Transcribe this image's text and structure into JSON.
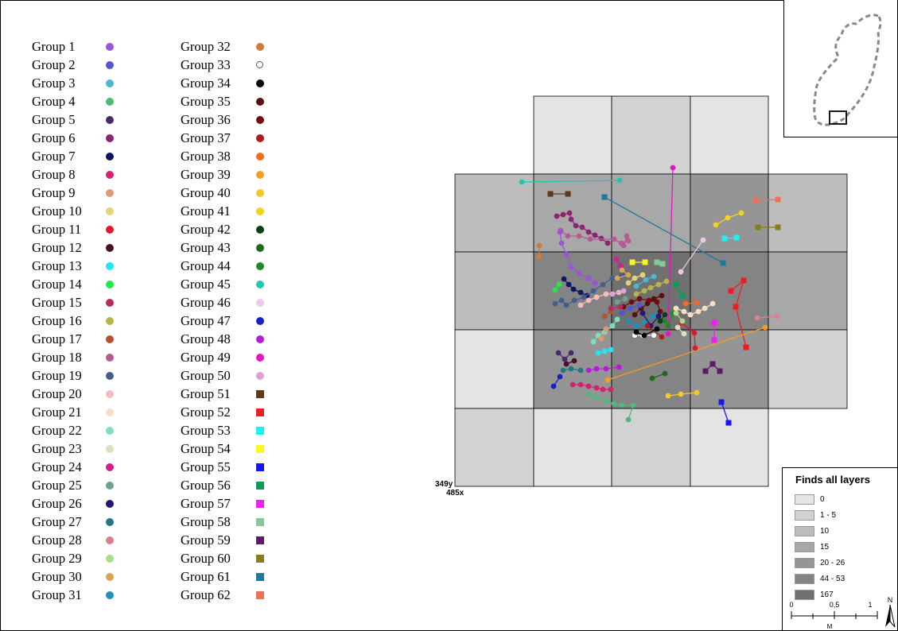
{
  "legend": {
    "groups": [
      {
        "label": "Group 1",
        "color": "#9a55d6",
        "shape": "circle"
      },
      {
        "label": "Group 2",
        "color": "#4f55d6",
        "shape": "circle"
      },
      {
        "label": "Group 3",
        "color": "#49b8d0",
        "shape": "circle"
      },
      {
        "label": "Group 4",
        "color": "#50b878",
        "shape": "circle"
      },
      {
        "label": "Group 5",
        "color": "#4a2a6f",
        "shape": "circle"
      },
      {
        "label": "Group 6",
        "color": "#8e2470",
        "shape": "circle"
      },
      {
        "label": "Group 7",
        "color": "#111560",
        "shape": "circle"
      },
      {
        "label": "Group 8",
        "color": "#d8206e",
        "shape": "circle"
      },
      {
        "label": "Group 9",
        "color": "#e09a78",
        "shape": "circle"
      },
      {
        "label": "Group 10",
        "color": "#e5d27a",
        "shape": "circle"
      },
      {
        "label": "Group 11",
        "color": "#dd1a30",
        "shape": "circle"
      },
      {
        "label": "Group 12",
        "color": "#4e0f26",
        "shape": "circle"
      },
      {
        "label": "Group 13",
        "color": "#23e6f0",
        "shape": "circle"
      },
      {
        "label": "Group 14",
        "color": "#22e84a",
        "shape": "circle"
      },
      {
        "label": "Group 15",
        "color": "#b82c5a",
        "shape": "circle"
      },
      {
        "label": "Group 16",
        "color": "#b6b54c",
        "shape": "circle"
      },
      {
        "label": "Group 17",
        "color": "#b55234",
        "shape": "circle"
      },
      {
        "label": "Group 18",
        "color": "#b55a94",
        "shape": "circle"
      },
      {
        "label": "Group 19",
        "color": "#465e8e",
        "shape": "circle"
      },
      {
        "label": "Group 20",
        "color": "#f4bcbe",
        "shape": "circle"
      },
      {
        "label": "Group 21",
        "color": "#f7dfc6",
        "shape": "circle"
      },
      {
        "label": "Group 22",
        "color": "#7fdec0",
        "shape": "circle"
      },
      {
        "label": "Group 23",
        "color": "#dfdcc0",
        "shape": "circle"
      },
      {
        "label": "Group 24",
        "color": "#d0208e",
        "shape": "circle"
      },
      {
        "label": "Group 25",
        "color": "#6fa090",
        "shape": "circle"
      },
      {
        "label": "Group 26",
        "color": "#23157a",
        "shape": "circle"
      },
      {
        "label": "Group 27",
        "color": "#237882",
        "shape": "circle"
      },
      {
        "label": "Group 28",
        "color": "#d9808e",
        "shape": "circle"
      },
      {
        "label": "Group 29",
        "color": "#a8e08a",
        "shape": "circle"
      },
      {
        "label": "Group 30",
        "color": "#dba452",
        "shape": "circle"
      },
      {
        "label": "Group 31",
        "color": "#1f90bb",
        "shape": "circle"
      },
      {
        "label": "Group 32",
        "color": "#d17a38",
        "shape": "circle"
      },
      {
        "label": "Group 33",
        "color": "#ffffff",
        "shape": "hollow"
      },
      {
        "label": "Group 34",
        "color": "#000000",
        "shape": "circle"
      },
      {
        "label": "Group 35",
        "color": "#5c0d12",
        "shape": "circle"
      },
      {
        "label": "Group 36",
        "color": "#730c0c",
        "shape": "circle"
      },
      {
        "label": "Group 37",
        "color": "#b01a1a",
        "shape": "circle"
      },
      {
        "label": "Group 38",
        "color": "#ee6d20",
        "shape": "circle"
      },
      {
        "label": "Group 39",
        "color": "#f29e22",
        "shape": "circle"
      },
      {
        "label": "Group 40",
        "color": "#f6c82a",
        "shape": "circle"
      },
      {
        "label": "Group 41",
        "color": "#f5d21c",
        "shape": "circle"
      },
      {
        "label": "Group 42",
        "color": "#0d3f12",
        "shape": "circle"
      },
      {
        "label": "Group 43",
        "color": "#1f6a1f",
        "shape": "circle"
      },
      {
        "label": "Group 44",
        "color": "#1f8a24",
        "shape": "circle"
      },
      {
        "label": "Group 45",
        "color": "#22c4b4",
        "shape": "circle"
      },
      {
        "label": "Group 46",
        "color": "#ecc8ea",
        "shape": "circle"
      },
      {
        "label": "Group 47",
        "color": "#1620c8",
        "shape": "circle"
      },
      {
        "label": "Group 48",
        "color": "#b61cd8",
        "shape": "circle"
      },
      {
        "label": "Group 49",
        "color": "#e118c0",
        "shape": "circle"
      },
      {
        "label": "Group 50",
        "color": "#e0a0dc",
        "shape": "circle"
      },
      {
        "label": "Group 51",
        "color": "#5e3a1a",
        "shape": "square"
      },
      {
        "label": "Group 52",
        "color": "#ee1c24",
        "shape": "square"
      },
      {
        "label": "Group 53",
        "color": "#22f0f0",
        "shape": "square"
      },
      {
        "label": "Group 54",
        "color": "#f8f81c",
        "shape": "square"
      },
      {
        "label": "Group 55",
        "color": "#1616f0",
        "shape": "square"
      },
      {
        "label": "Group 56",
        "color": "#129a5a",
        "shape": "square"
      },
      {
        "label": "Group 57",
        "color": "#f41cf0",
        "shape": "square"
      },
      {
        "label": "Group 58",
        "color": "#86c89a",
        "shape": "square"
      },
      {
        "label": "Group 59",
        "color": "#5e1a6a",
        "shape": "square"
      },
      {
        "label": "Group 60",
        "color": "#8a7e1a",
        "shape": "square"
      },
      {
        "label": "Group 61",
        "color": "#1e7a9a",
        "shape": "square"
      },
      {
        "label": "Group 62",
        "color": "#ee7258",
        "shape": "square"
      }
    ]
  },
  "density_key": {
    "title": "Finds all layers",
    "classes": [
      {
        "label": "0",
        "color": "#e4e4e4"
      },
      {
        "label": "1 - 5",
        "color": "#d2d2d2"
      },
      {
        "label": "10",
        "color": "#bdbdbd"
      },
      {
        "label": "15",
        "color": "#a8a8a8"
      },
      {
        "label": "20 - 26",
        "color": "#959595"
      },
      {
        "label": "44 - 53",
        "color": "#848484"
      },
      {
        "label": "167",
        "color": "#707070"
      }
    ]
  },
  "scale_bar": {
    "labels": [
      "0",
      "0,5",
      "1"
    ],
    "unit": "M"
  },
  "north_arrow": {
    "label": "N"
  },
  "grid_origin": {
    "y_label": "349y",
    "x_label": "485x"
  }
}
